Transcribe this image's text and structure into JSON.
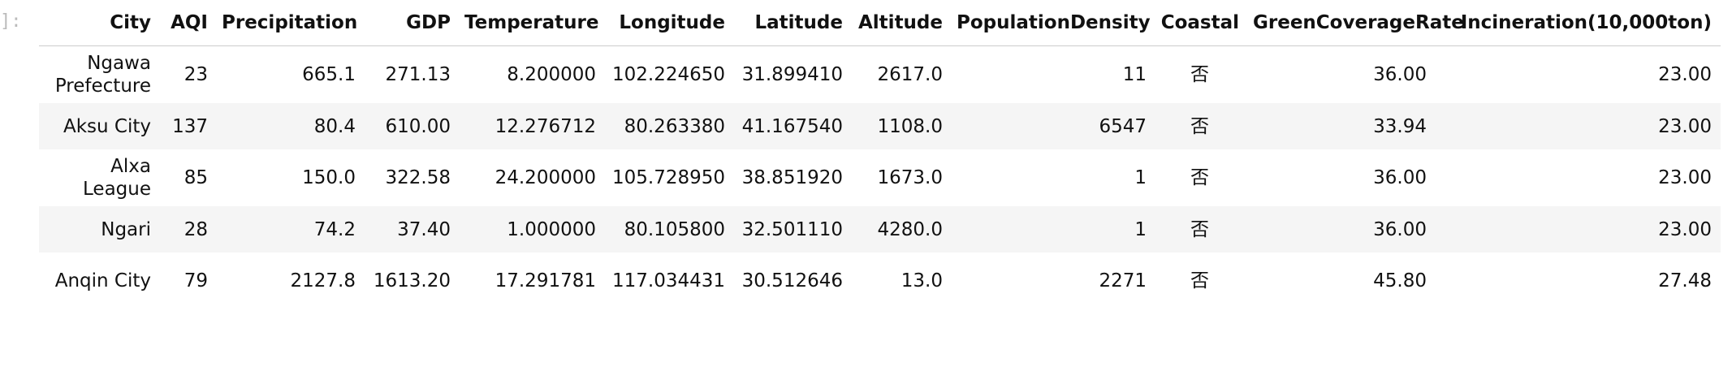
{
  "prompt": "]:",
  "table": {
    "columns": [
      "City",
      "AQI",
      "Precipitation",
      "GDP",
      "Temperature",
      "Longitude",
      "Latitude",
      "Altitude",
      "PopulationDensity",
      "Coastal",
      "GreenCoverageRate",
      "Incineration(10,000ton)"
    ],
    "rows": [
      [
        "Ngawa Prefecture",
        "23",
        "665.1",
        "271.13",
        "8.200000",
        "102.224650",
        "31.899410",
        "2617.0",
        "11",
        "否",
        "36.00",
        "23.00"
      ],
      [
        "Aksu City",
        "137",
        "80.4",
        "610.00",
        "12.276712",
        "80.263380",
        "41.167540",
        "1108.0",
        "6547",
        "否",
        "33.94",
        "23.00"
      ],
      [
        "Alxa League",
        "85",
        "150.0",
        "322.58",
        "24.200000",
        "105.728950",
        "38.851920",
        "1673.0",
        "1",
        "否",
        "36.00",
        "23.00"
      ],
      [
        "Ngari",
        "28",
        "74.2",
        "37.40",
        "1.000000",
        "80.105800",
        "32.501110",
        "4280.0",
        "1",
        "否",
        "36.00",
        "23.00"
      ],
      [
        "Anqin City",
        "79",
        "2127.8",
        "1613.20",
        "17.291781",
        "117.034431",
        "30.512646",
        "13.0",
        "2271",
        "否",
        "45.80",
        "27.48"
      ]
    ]
  }
}
